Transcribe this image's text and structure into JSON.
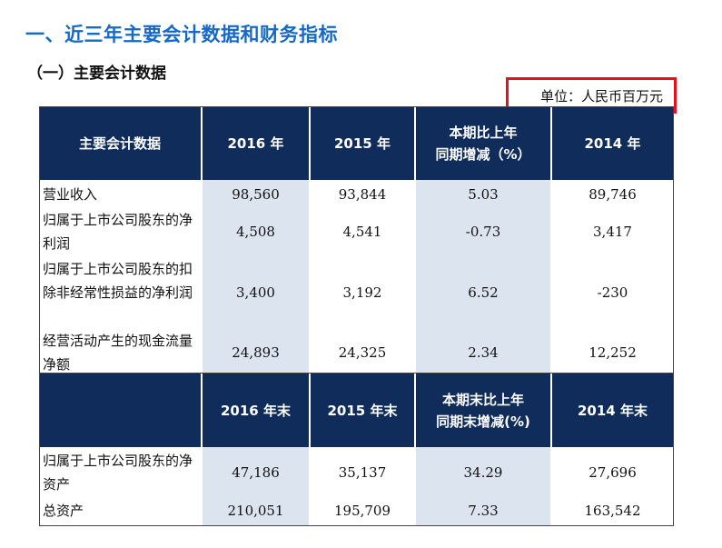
{
  "heading": "一、近三年主要会计数据和财务指标",
  "subheading": "（一）主要会计数据",
  "unit": "单位：人民币百万元",
  "table1": {
    "headers": [
      "主要会计数据",
      "2016 年",
      "2015 年",
      "本期比上年\n同期增减（%）",
      "2014 年"
    ],
    "rows": [
      {
        "label": "营业收入",
        "values": [
          "98,560",
          "93,844",
          "5.03",
          "89,746"
        ]
      },
      {
        "label": "归属于上市公司股东的净利润",
        "values": [
          "4,508",
          "4,541",
          "-0.73",
          "3,417"
        ]
      },
      {
        "label": "归属于上市公司股东的扣除非经常性损益的净利润",
        "values": [
          "3,400",
          "3,192",
          "6.52",
          "-230"
        ]
      },
      {
        "label": "经营活动产生的现金流量净额",
        "values": [
          "24,893",
          "24,325",
          "2.34",
          "12,252"
        ]
      }
    ]
  },
  "table2": {
    "headers": [
      "",
      "2016 年末",
      "2015 年末",
      "本期末比上年\n同期末增减(%)",
      "2014 年末"
    ],
    "rows": [
      {
        "label": "归属于上市公司股东的净资产",
        "values": [
          "47,186",
          "35,137",
          "34.29",
          "27,696"
        ]
      },
      {
        "label": "总资产",
        "values": [
          "210,051",
          "195,709",
          "7.33",
          "163,542"
        ]
      }
    ]
  }
}
